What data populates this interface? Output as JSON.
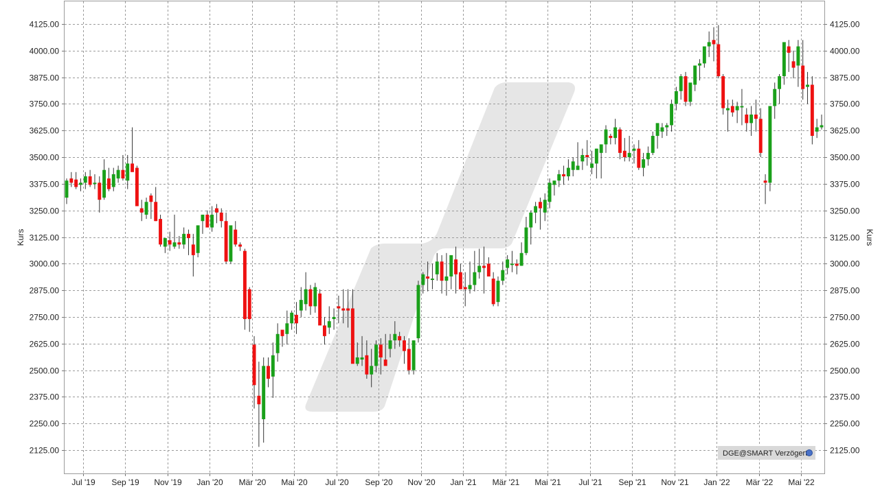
{
  "chart_data": {
    "type": "candlestick",
    "ylabel": "Kurs",
    "ylim": [
      2050,
      4180
    ],
    "y_ticks": [
      2125,
      2250,
      2375,
      2500,
      2625,
      2750,
      2875,
      3000,
      3125,
      3250,
      3375,
      3500,
      3625,
      3750,
      3875,
      4000,
      4125
    ],
    "y_tick_labels": [
      "2125.00",
      "2250.00",
      "2375.00",
      "2500.00",
      "2625.00",
      "2750.00",
      "2875.00",
      "3000.00",
      "3125.00",
      "3250.00",
      "3375.00",
      "3500.00",
      "3625.00",
      "3750.00",
      "3875.00",
      "4000.00",
      "4125.00"
    ],
    "x_tick_labels": [
      "Jul '19",
      "Sep '19",
      "Nov '19",
      "Jan '20",
      "Mär '20",
      "Mai '20",
      "Jul '20",
      "Sep '20",
      "Nov '20",
      "Jan '21",
      "Mär '21",
      "Mai '21",
      "Jul '21",
      "Sep '21",
      "Nov '21",
      "Jan '22",
      "Mär '22",
      "Mai '22"
    ],
    "grid": true,
    "up_color": "#1aa01a",
    "down_color": "#ee1111",
    "series": [
      {
        "values": [
          [
            3310,
            3400,
            3280,
            3390
          ],
          [
            3400,
            3430,
            3360,
            3380
          ],
          [
            3395,
            3430,
            3350,
            3360
          ],
          [
            3370,
            3400,
            3340,
            3380
          ],
          [
            3380,
            3430,
            3350,
            3410
          ],
          [
            3410,
            3440,
            3360,
            3370
          ],
          [
            3380,
            3420,
            3350,
            3380
          ],
          [
            3380,
            3410,
            3240,
            3300
          ],
          [
            3310,
            3490,
            3300,
            3440
          ],
          [
            3400,
            3450,
            3340,
            3350
          ],
          [
            3360,
            3450,
            3340,
            3420
          ],
          [
            3400,
            3460,
            3380,
            3440
          ],
          [
            3440,
            3510,
            3390,
            3400
          ],
          [
            3390,
            3510,
            3350,
            3470
          ],
          [
            3470,
            3640,
            3440,
            3430
          ],
          [
            3450,
            3460,
            3280,
            3270
          ],
          [
            3260,
            3300,
            3200,
            3240
          ],
          [
            3230,
            3310,
            3210,
            3290
          ],
          [
            3320,
            3330,
            3210,
            3290
          ],
          [
            3290,
            3360,
            3200,
            3200
          ],
          [
            3210,
            3230,
            3080,
            3090
          ],
          [
            3080,
            3100,
            3050,
            3120
          ],
          [
            3110,
            3150,
            3060,
            3090
          ],
          [
            3080,
            3230,
            3070,
            3100
          ],
          [
            3100,
            3130,
            3070,
            3090
          ],
          [
            3090,
            3170,
            3070,
            3140
          ],
          [
            3140,
            3160,
            3040,
            3120
          ],
          [
            3090,
            3140,
            2940,
            3040
          ],
          [
            3050,
            3180,
            3030,
            3180
          ],
          [
            3200,
            3230,
            3140,
            3230
          ],
          [
            3230,
            3250,
            3200,
            3170
          ],
          [
            3170,
            3270,
            3150,
            3230
          ],
          [
            3260,
            3280,
            3190,
            3240
          ],
          [
            3240,
            3260,
            3170,
            3200
          ],
          [
            3200,
            3240,
            3000,
            3010
          ],
          [
            3010,
            3120,
            3000,
            3180
          ],
          [
            3160,
            3200,
            3080,
            3090
          ],
          [
            3090,
            3100,
            3060,
            3080
          ],
          [
            3060,
            3070,
            2690,
            2740
          ],
          [
            2880,
            2890,
            2680,
            2740
          ],
          [
            2620,
            2660,
            2320,
            2430
          ],
          [
            2380,
            2540,
            2140,
            2340
          ],
          [
            2270,
            2560,
            2160,
            2520
          ],
          [
            2520,
            2560,
            2420,
            2460
          ],
          [
            2470,
            2630,
            2370,
            2570
          ],
          [
            2580,
            2720,
            2540,
            2670
          ],
          [
            2690,
            2670,
            2610,
            2660
          ],
          [
            2670,
            2780,
            2620,
            2720
          ],
          [
            2720,
            2780,
            2690,
            2770
          ],
          [
            2760,
            2820,
            2670,
            2720
          ],
          [
            2780,
            2890,
            2750,
            2830
          ],
          [
            2810,
            2960,
            2780,
            2880
          ],
          [
            2880,
            2900,
            2760,
            2800
          ],
          [
            2800,
            2910,
            2770,
            2890
          ],
          [
            2860,
            2880,
            2740,
            2710
          ],
          [
            2710,
            2750,
            2620,
            2660
          ],
          [
            2700,
            2800,
            2670,
            2730
          ],
          [
            2740,
            2790,
            2690,
            2750
          ],
          [
            2800,
            2850,
            2720,
            2790
          ],
          [
            2790,
            2880,
            2720,
            2780
          ],
          [
            2790,
            2880,
            2700,
            2780
          ],
          [
            2790,
            2880,
            2700,
            2530
          ],
          [
            2530,
            2630,
            2520,
            2560
          ],
          [
            2550,
            2660,
            2520,
            2560
          ],
          [
            2570,
            2640,
            2460,
            2480
          ],
          [
            2480,
            2600,
            2420,
            2520
          ],
          [
            2520,
            2640,
            2490,
            2620
          ],
          [
            2620,
            2650,
            2480,
            2560
          ],
          [
            2550,
            2670,
            2540,
            2520
          ],
          [
            2600,
            2670,
            2560,
            2640
          ],
          [
            2640,
            2730,
            2600,
            2670
          ],
          [
            2660,
            2680,
            2610,
            2640
          ],
          [
            2640,
            2660,
            2530,
            2590
          ],
          [
            2600,
            2650,
            2480,
            2500
          ],
          [
            2500,
            2640,
            2480,
            2640
          ],
          [
            2650,
            2920,
            2630,
            2900
          ],
          [
            2900,
            2960,
            2860,
            2950
          ],
          [
            2940,
            3010,
            2870,
            2930
          ],
          [
            2930,
            3000,
            2880,
            2930
          ],
          [
            2950,
            3050,
            2920,
            3010
          ],
          [
            3010,
            3040,
            2860,
            2920
          ],
          [
            2920,
            3050,
            2850,
            2940
          ],
          [
            2940,
            3020,
            2880,
            3040
          ],
          [
            3020,
            3080,
            2860,
            2950
          ],
          [
            2960,
            3000,
            2880,
            2880
          ],
          [
            2890,
            2960,
            2800,
            2880
          ],
          [
            2880,
            3010,
            2860,
            2900
          ],
          [
            2900,
            3060,
            2870,
            2960
          ],
          [
            2960,
            3070,
            2930,
            2990
          ],
          [
            2990,
            3080,
            2860,
            2980
          ],
          [
            3000,
            3030,
            2950,
            2940
          ],
          [
            2930,
            2960,
            2800,
            2810
          ],
          [
            2820,
            2940,
            2800,
            2920
          ],
          [
            2920,
            3010,
            2900,
            2970
          ],
          [
            2980,
            3040,
            2950,
            3020
          ],
          [
            3000,
            3060,
            2960,
            3000
          ],
          [
            3000,
            3020,
            2950,
            2990
          ],
          [
            2990,
            3100,
            2990,
            3050
          ],
          [
            3050,
            3220,
            3040,
            3170
          ],
          [
            3170,
            3250,
            3090,
            3240
          ],
          [
            3240,
            3290,
            3190,
            3270
          ],
          [
            3290,
            3310,
            3160,
            3260
          ],
          [
            3240,
            3330,
            3200,
            3300
          ],
          [
            3290,
            3400,
            3260,
            3380
          ],
          [
            3370,
            3390,
            3320,
            3390
          ],
          [
            3390,
            3440,
            3360,
            3420
          ],
          [
            3420,
            3460,
            3370,
            3410
          ],
          [
            3410,
            3490,
            3390,
            3450
          ],
          [
            3440,
            3500,
            3410,
            3480
          ],
          [
            3440,
            3570,
            3440,
            3460
          ],
          [
            3480,
            3540,
            3440,
            3510
          ],
          [
            3510,
            3580,
            3460,
            3500
          ],
          [
            3450,
            3530,
            3420,
            3470
          ],
          [
            3470,
            3540,
            3400,
            3540
          ],
          [
            3520,
            3560,
            3400,
            3560
          ],
          [
            3560,
            3650,
            3520,
            3630
          ],
          [
            3600,
            3610,
            3560,
            3590
          ],
          [
            3590,
            3680,
            3560,
            3640
          ],
          [
            3630,
            3640,
            3490,
            3520
          ],
          [
            3530,
            3590,
            3480,
            3500
          ],
          [
            3500,
            3600,
            3480,
            3520
          ],
          [
            3530,
            3560,
            3470,
            3540
          ],
          [
            3540,
            3580,
            3440,
            3450
          ],
          [
            3450,
            3520,
            3410,
            3490
          ],
          [
            3490,
            3550,
            3460,
            3520
          ],
          [
            3520,
            3620,
            3510,
            3600
          ],
          [
            3600,
            3640,
            3540,
            3660
          ],
          [
            3620,
            3660,
            3590,
            3640
          ],
          [
            3640,
            3660,
            3600,
            3650
          ],
          [
            3650,
            3770,
            3620,
            3750
          ],
          [
            3750,
            3830,
            3720,
            3810
          ],
          [
            3810,
            3890,
            3770,
            3880
          ],
          [
            3880,
            3900,
            3740,
            3760
          ],
          [
            3760,
            3830,
            3740,
            3850
          ],
          [
            3840,
            3930,
            3810,
            3930
          ],
          [
            3930,
            3960,
            3860,
            3940
          ],
          [
            3940,
            4000,
            3920,
            4020
          ],
          [
            4020,
            4090,
            3970,
            4040
          ],
          [
            4050,
            4110,
            3950,
            4030
          ],
          [
            4030,
            4120,
            3870,
            3880
          ],
          [
            3880,
            3890,
            3700,
            3730
          ],
          [
            3720,
            3770,
            3620,
            3730
          ],
          [
            3740,
            3770,
            3690,
            3710
          ],
          [
            3720,
            3760,
            3660,
            3740
          ],
          [
            3740,
            3820,
            3650,
            3740
          ],
          [
            3700,
            3730,
            3620,
            3660
          ],
          [
            3660,
            3740,
            3600,
            3700
          ],
          [
            3700,
            3770,
            3620,
            3680
          ],
          [
            3680,
            3730,
            3500,
            3520
          ],
          [
            3390,
            3420,
            3280,
            3380
          ],
          [
            3380,
            3740,
            3340,
            3740
          ],
          [
            3740,
            3850,
            3680,
            3820
          ],
          [
            3820,
            3890,
            3750,
            3880
          ],
          [
            3880,
            4010,
            3840,
            4040
          ],
          [
            4020,
            4050,
            3900,
            3990
          ],
          [
            3950,
            4000,
            3870,
            3920
          ],
          [
            3930,
            4050,
            3830,
            4020
          ],
          [
            3930,
            4050,
            3770,
            3820
          ],
          [
            3830,
            3900,
            3750,
            3840
          ],
          [
            3840,
            3880,
            3560,
            3600
          ],
          [
            3620,
            3680,
            3590,
            3640
          ],
          [
            3640,
            3700,
            3630,
            3650
          ]
        ]
      }
    ]
  },
  "badge": {
    "text": "DGE@SMART Verzögert"
  }
}
